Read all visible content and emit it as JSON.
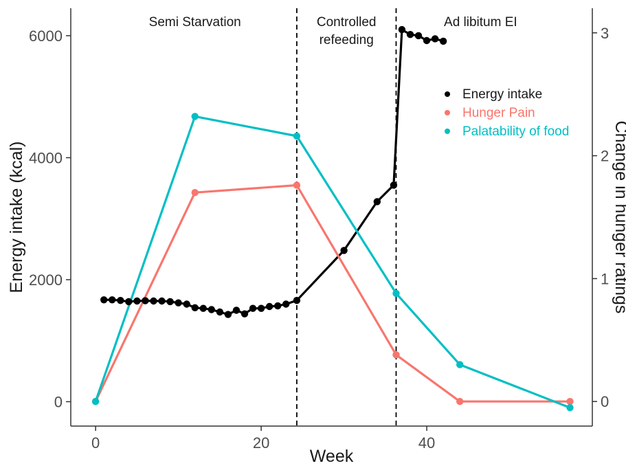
{
  "chart_data": {
    "type": "line",
    "xlabel": "Week",
    "ylabel_left": "Energy intake (kcal)",
    "ylabel_right": "Change in hunger ratings",
    "xlim": [
      -3,
      60
    ],
    "ylim_left": [
      -400,
      6450
    ],
    "ylim_right": [
      -0.2,
      3.2
    ],
    "x_ticks": [
      0,
      20,
      40
    ],
    "y_ticks_left": [
      0,
      2000,
      4000,
      6000
    ],
    "y_ticks_right": [
      0,
      1,
      2,
      3
    ],
    "grid": false,
    "legend_position": "right",
    "phase_dividers": [
      24.3,
      36.3
    ],
    "phase_labels": [
      {
        "text": "Semi Starvation",
        "x": 12
      },
      {
        "text": "Controlled",
        "x": 30.3
      },
      {
        "text": "refeeding",
        "x": 30.3
      },
      {
        "text": "Ad libitum EI",
        "x": 46.5
      }
    ],
    "series": [
      {
        "name": "Energy intake",
        "axis": "left",
        "color": "#000000",
        "points": [
          [
            1,
            1670
          ],
          [
            2,
            1670
          ],
          [
            3,
            1660
          ],
          [
            4,
            1640
          ],
          [
            5,
            1650
          ],
          [
            6,
            1655
          ],
          [
            7,
            1650
          ],
          [
            8,
            1650
          ],
          [
            9,
            1640
          ],
          [
            10,
            1620
          ],
          [
            11,
            1600
          ],
          [
            12,
            1540
          ],
          [
            13,
            1530
          ],
          [
            14,
            1510
          ],
          [
            15,
            1470
          ],
          [
            16,
            1430
          ],
          [
            17,
            1500
          ],
          [
            18,
            1440
          ],
          [
            19,
            1530
          ],
          [
            20,
            1530
          ],
          [
            21,
            1560
          ],
          [
            22,
            1570
          ],
          [
            23,
            1600
          ],
          [
            24.3,
            1660
          ],
          [
            30,
            2480
          ],
          [
            34,
            3280
          ],
          [
            36,
            3550
          ],
          [
            37,
            6100
          ],
          [
            38,
            6020
          ],
          [
            39,
            6000
          ],
          [
            40,
            5920
          ],
          [
            41,
            5950
          ],
          [
            42,
            5910
          ]
        ]
      },
      {
        "name": "Hunger Pain",
        "axis": "right",
        "color": "#F8766D",
        "points": [
          [
            0,
            0
          ],
          [
            12,
            1.7
          ],
          [
            24.3,
            1.76
          ],
          [
            36.3,
            0.38
          ],
          [
            44,
            0
          ],
          [
            57.3,
            0
          ]
        ]
      },
      {
        "name": "Palatability of food",
        "axis": "right",
        "color": "#00BFC4",
        "points": [
          [
            0,
            0
          ],
          [
            12,
            2.32
          ],
          [
            24.3,
            2.16
          ],
          [
            36.3,
            0.88
          ],
          [
            44,
            0.3
          ],
          [
            57.3,
            -0.05
          ]
        ]
      }
    ]
  }
}
